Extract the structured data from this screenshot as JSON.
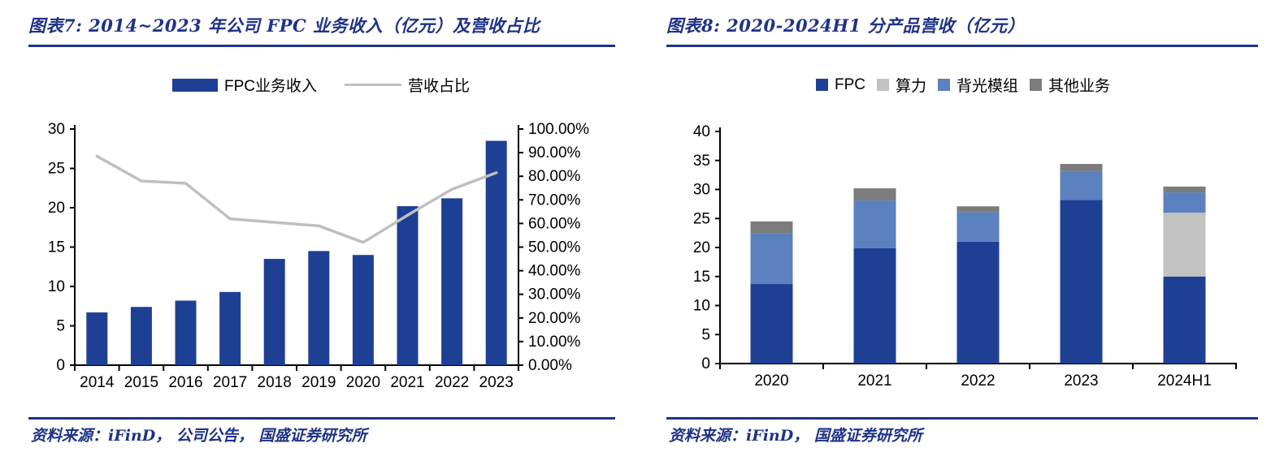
{
  "page": {
    "background": "#FFFFFF",
    "accent_navy": "#1F3287"
  },
  "figures": [
    {
      "title": "图表7:  2014~2023 年公司 FPC 业务收入（亿元）及营收占比",
      "source": "资料来源：iFinD， 公司公告， 国盛证券研究所"
    },
    {
      "title": "图表8:  2020-2024H1 分产品营收（亿元）",
      "source": "资料来源：iFinD， 国盛证券研究所"
    }
  ],
  "chart_data": [
    {
      "type": "bar",
      "subtype": "bar+line combo, dual axis",
      "title": "2014~2023 年公司 FPC 业务收入（亿元）及营收占比",
      "categories": [
        "2014",
        "2015",
        "2016",
        "2017",
        "2018",
        "2019",
        "2020",
        "2021",
        "2022",
        "2023"
      ],
      "series": [
        {
          "name": "FPC业务收入",
          "chart": "bar",
          "axis": "left",
          "color": "#1E4094",
          "values": [
            6.7,
            7.4,
            8.2,
            9.3,
            13.5,
            14.5,
            14.0,
            20.2,
            21.2,
            28.5
          ]
        },
        {
          "name": "营收占比",
          "chart": "line",
          "axis": "right",
          "color": "#BFBFBF",
          "values": [
            88.5,
            78.0,
            77.0,
            62.0,
            60.5,
            59.0,
            52.0,
            63.5,
            74.5,
            81.5
          ]
        }
      ],
      "left_axis": {
        "min": 0,
        "max": 30,
        "step": 5,
        "tick_labels": [
          "0",
          "5",
          "10",
          "15",
          "20",
          "25",
          "30"
        ]
      },
      "right_axis": {
        "min": 0,
        "max": 100,
        "step": 10,
        "tick_labels": [
          "0.00%",
          "10.00%",
          "20.00%",
          "30.00%",
          "40.00%",
          "50.00%",
          "60.00%",
          "70.00%",
          "80.00%",
          "90.00%",
          "100.00%"
        ]
      },
      "legend_position": "top",
      "grid": false
    },
    {
      "type": "bar",
      "subtype": "stacked bar",
      "title": "2020-2024H1 分产品营收（亿元）",
      "categories": [
        "2020",
        "2021",
        "2022",
        "2023",
        "2024H1"
      ],
      "series": [
        {
          "name": "FPC",
          "color": "#1E4094",
          "values": [
            13.7,
            19.9,
            21.0,
            28.2,
            15.0
          ]
        },
        {
          "name": "算力",
          "color": "#C2C2C2",
          "values": [
            0,
            0,
            0,
            0,
            11.0
          ]
        },
        {
          "name": "背光模组",
          "color": "#5B82BF",
          "values": [
            8.8,
            8.2,
            5.1,
            5.0,
            3.5
          ]
        },
        {
          "name": "其他业务",
          "color": "#7C7C7C",
          "values": [
            2.0,
            2.1,
            1.0,
            1.2,
            1.0
          ]
        }
      ],
      "totals": [
        24.5,
        30.2,
        27.1,
        34.4,
        30.5
      ],
      "y_axis": {
        "min": 0,
        "max": 40,
        "step": 5,
        "tick_labels": [
          "0",
          "5",
          "10",
          "15",
          "20",
          "25",
          "30",
          "35",
          "40"
        ]
      },
      "legend_position": "top",
      "grid": false
    }
  ]
}
